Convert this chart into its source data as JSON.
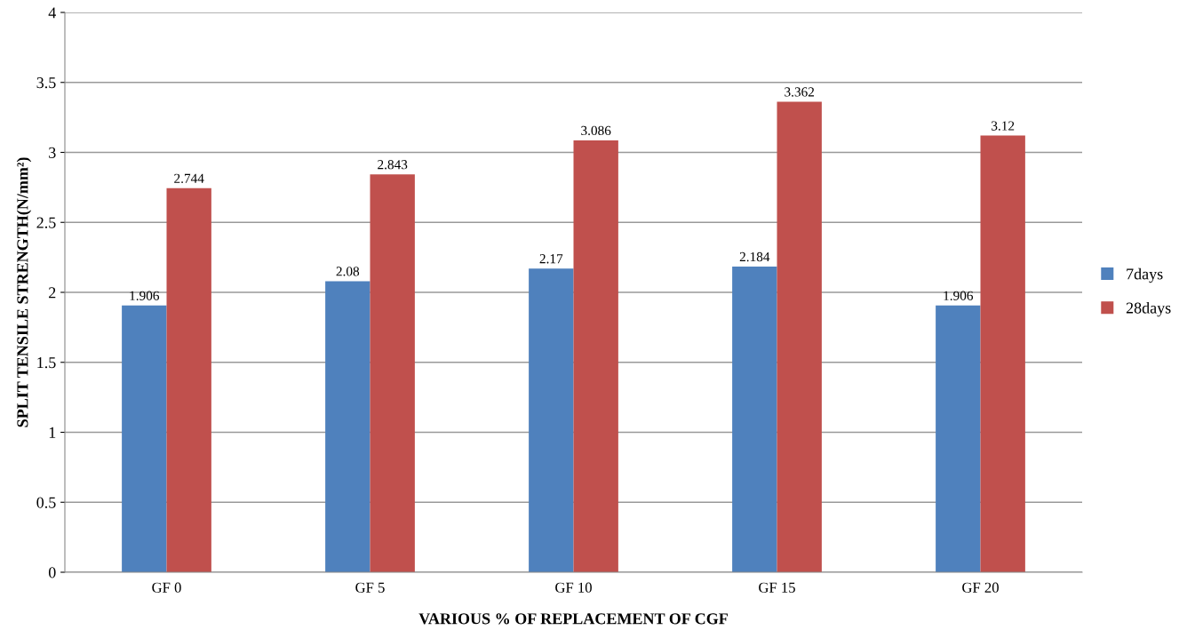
{
  "chart_data": {
    "type": "bar",
    "categories": [
      "GF 0",
      "GF 5",
      "GF 10",
      "GF 15",
      "GF 20"
    ],
    "series": [
      {
        "name": "7days",
        "color": "#4f81bd",
        "values": [
          1.906,
          2.08,
          2.17,
          2.184,
          1.906
        ]
      },
      {
        "name": "28days",
        "color": "#c0504d",
        "values": [
          2.744,
          2.843,
          3.086,
          3.362,
          3.12
        ]
      }
    ],
    "xlabel": "VARIOUS % OF REPLACEMENT OF CGF",
    "ylabel": "SPLIT TENSILE STRENGTH(N/mm²)",
    "ylim": [
      0,
      4
    ],
    "yticks": [
      0,
      0.5,
      1,
      1.5,
      2,
      2.5,
      3,
      3.5,
      4
    ],
    "grid": "y",
    "legend": "right",
    "data_labels": true
  }
}
